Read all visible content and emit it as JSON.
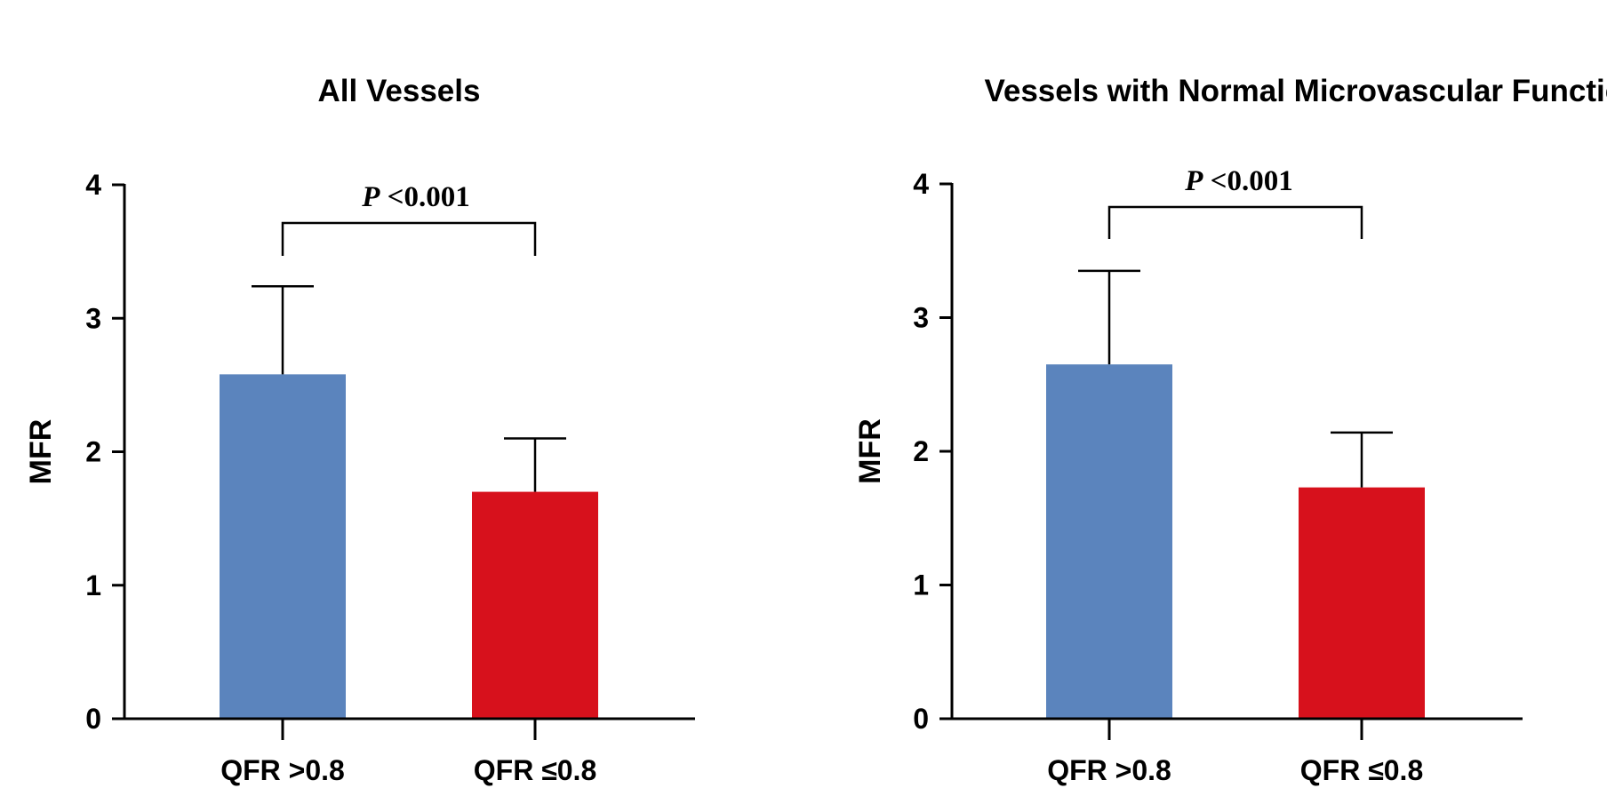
{
  "chart_data": [
    {
      "type": "bar",
      "title": "All Vessels",
      "ylabel": "MFR",
      "xlabel": "",
      "ylim": [
        0,
        4
      ],
      "yticks": [
        "0",
        "1",
        "2",
        "3",
        "4"
      ],
      "categories": [
        "QFR >0.8",
        "QFR ≤0.8"
      ],
      "values": [
        2.58,
        1.7
      ],
      "errors": [
        0.66,
        0.4
      ],
      "colors": [
        "#5b84bd",
        "#d7111c"
      ],
      "significance": {
        "prefix": "P",
        "text": " <0.001"
      }
    },
    {
      "type": "bar",
      "title": "Vessels with Normal Microvascular Function",
      "ylabel": "MFR",
      "xlabel": "",
      "ylim": [
        0,
        4
      ],
      "yticks": [
        "0",
        "1",
        "2",
        "3",
        "4"
      ],
      "categories": [
        "QFR >0.8",
        "QFR ≤0.8"
      ],
      "values": [
        2.65,
        1.73
      ],
      "errors": [
        0.7,
        0.41
      ],
      "colors": [
        "#5b84bd",
        "#d7111c"
      ],
      "significance": {
        "prefix": "P",
        "text": " <0.001"
      }
    }
  ]
}
